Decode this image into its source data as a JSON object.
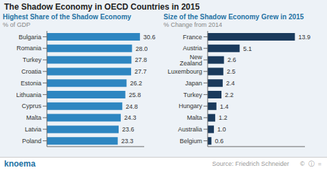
{
  "chart_data": [
    {
      "type": "bar",
      "orientation": "horizontal",
      "title": "Highest Share of the Shadow Economy",
      "subtitle": "% of GDP",
      "annotations": [
        "The Shadow Economy in OECD Countries in 2015",
        "knoema",
        "Source: Friedrich Schneider",
        "©  ⓘ  ="
      ],
      "categories": [
        "Bulgaria",
        "Romania",
        "Turkey",
        "Croatia",
        "Estonia",
        "Lithuania",
        "Cyprus",
        "Malta",
        "Latvia",
        "Poland"
      ],
      "values": [
        30.6,
        28.0,
        27.8,
        27.7,
        26.2,
        25.8,
        24.8,
        24.3,
        23.6,
        23.3
      ],
      "value_labels": [
        "30.6",
        "28.0",
        "27.8",
        "27.7",
        "26.2",
        "25.8",
        "24.8",
        "24.3",
        "23.6",
        "23.3"
      ],
      "color": "#2e86c1",
      "xlim": [
        0,
        32
      ],
      "grid": false,
      "data_labels": true,
      "tick_labels": "y"
    },
    {
      "type": "bar",
      "orientation": "horizontal",
      "title": "Size of the Shadow Economy Grew in 2015",
      "subtitle": "% Change from 2014",
      "categories": [
        "France",
        "Austria",
        "New Zealand",
        "Luxembourg",
        "Japan",
        "Turkey",
        "Hungary",
        "Malta",
        "Australia",
        "Belgium"
      ],
      "values": [
        13.9,
        5.1,
        2.6,
        2.5,
        2.4,
        2.2,
        1.4,
        1.2,
        1.0,
        0.6
      ],
      "value_labels": [
        "13.9",
        "5.1",
        "2.6",
        "2.5",
        "2.4",
        "2.2",
        "1.4",
        "1.2",
        "1.0",
        "0.6"
      ],
      "color": "#1a3a5c",
      "xlim": [
        0,
        15.5
      ],
      "grid": false,
      "data_labels": true,
      "tick_labels": "y"
    }
  ]
}
